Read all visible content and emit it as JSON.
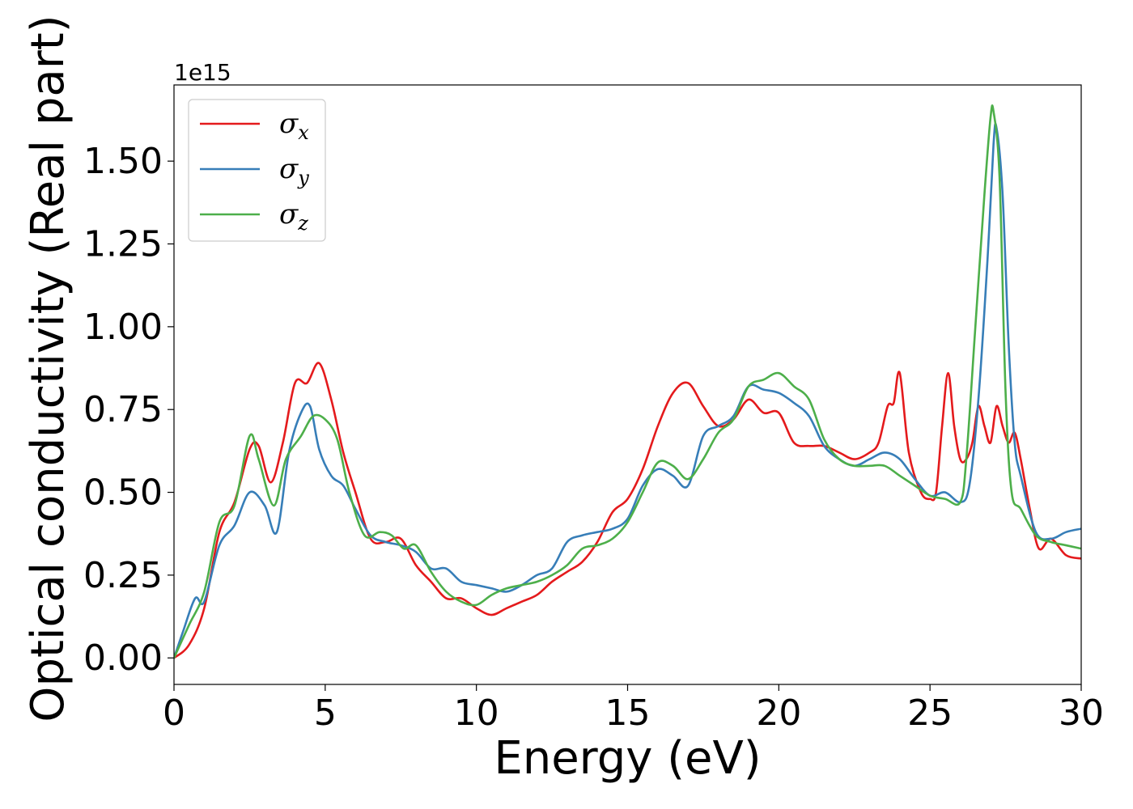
{
  "chart_data": {
    "type": "line",
    "xlabel": "Energy (eV)",
    "ylabel": "Optical conductivity (Real part)",
    "y_offset_label": "1e15",
    "xlim": [
      0,
      30
    ],
    "ylim": [
      -0.08,
      1.73
    ],
    "xticks": [
      0,
      5,
      10,
      15,
      20,
      25,
      30
    ],
    "xtick_labels": [
      "0",
      "5",
      "10",
      "15",
      "20",
      "25",
      "30"
    ],
    "yticks": [
      0.0,
      0.25,
      0.5,
      0.75,
      1.0,
      1.25,
      1.5
    ],
    "ytick_labels": [
      "0.00",
      "0.25",
      "0.50",
      "0.75",
      "1.00",
      "1.25",
      "1.50"
    ],
    "grid": false,
    "legend_position": "upper-left",
    "series": [
      {
        "name": "σx",
        "symbol": "σ",
        "subscript": "x",
        "color": "#e41a1c",
        "x": [
          0,
          0.5,
          1,
          1.5,
          2,
          2.5,
          2.8,
          3.2,
          3.6,
          4,
          4.4,
          4.8,
          5.2,
          5.6,
          6,
          6.5,
          7,
          7.5,
          8,
          8.5,
          9,
          9.5,
          10,
          10.5,
          11,
          11.5,
          12,
          12.5,
          13,
          13.5,
          14,
          14.5,
          15,
          15.5,
          16,
          16.5,
          17,
          17.5,
          18,
          18.5,
          19,
          19.5,
          20,
          20.5,
          21,
          21.5,
          22,
          22.5,
          23,
          23.3,
          23.6,
          23.8,
          24,
          24.3,
          24.7,
          25,
          25.2,
          25.4,
          25.6,
          25.8,
          26,
          26.2,
          26.4,
          26.6,
          26.8,
          27,
          27.2,
          27.4,
          27.6,
          27.8,
          28,
          28.3,
          28.6,
          29,
          29.5,
          30
        ],
        "values": [
          0,
          0.04,
          0.15,
          0.38,
          0.47,
          0.63,
          0.64,
          0.53,
          0.65,
          0.83,
          0.83,
          0.89,
          0.78,
          0.62,
          0.5,
          0.36,
          0.35,
          0.36,
          0.28,
          0.23,
          0.18,
          0.18,
          0.15,
          0.13,
          0.15,
          0.17,
          0.19,
          0.23,
          0.26,
          0.29,
          0.35,
          0.44,
          0.48,
          0.57,
          0.7,
          0.8,
          0.83,
          0.76,
          0.7,
          0.72,
          0.78,
          0.74,
          0.74,
          0.65,
          0.64,
          0.64,
          0.62,
          0.6,
          0.62,
          0.65,
          0.76,
          0.77,
          0.86,
          0.62,
          0.5,
          0.48,
          0.5,
          0.7,
          0.86,
          0.7,
          0.6,
          0.6,
          0.65,
          0.76,
          0.7,
          0.65,
          0.76,
          0.7,
          0.65,
          0.68,
          0.6,
          0.45,
          0.33,
          0.36,
          0.31,
          0.3
        ]
      },
      {
        "name": "σy",
        "symbol": "σ",
        "subscript": "y",
        "color": "#377eb8",
        "x": [
          0,
          0.3,
          0.7,
          1,
          1.5,
          2,
          2.5,
          3,
          3.4,
          3.8,
          4.2,
          4.5,
          4.8,
          5.2,
          5.6,
          6,
          6.5,
          7,
          7.5,
          8,
          8.5,
          9,
          9.5,
          10,
          10.5,
          11,
          11.5,
          12,
          12.5,
          13,
          13.5,
          14,
          14.5,
          15,
          15.5,
          16,
          16.5,
          17,
          17.5,
          18,
          18.5,
          19,
          19.5,
          20,
          20.5,
          21,
          21.5,
          22,
          22.5,
          23,
          23.5,
          24,
          24.5,
          25,
          25.5,
          26,
          26.3,
          26.6,
          26.9,
          27.1,
          27.2,
          27.4,
          27.6,
          27.8,
          28,
          28.5,
          29,
          29.5,
          30
        ],
        "values": [
          0,
          0.08,
          0.18,
          0.17,
          0.34,
          0.4,
          0.5,
          0.46,
          0.38,
          0.62,
          0.74,
          0.76,
          0.63,
          0.55,
          0.52,
          0.45,
          0.37,
          0.35,
          0.34,
          0.32,
          0.27,
          0.27,
          0.23,
          0.22,
          0.21,
          0.2,
          0.22,
          0.25,
          0.27,
          0.35,
          0.37,
          0.38,
          0.39,
          0.42,
          0.52,
          0.57,
          0.55,
          0.52,
          0.67,
          0.7,
          0.73,
          0.82,
          0.81,
          0.8,
          0.77,
          0.73,
          0.64,
          0.6,
          0.58,
          0.6,
          0.62,
          0.6,
          0.54,
          0.49,
          0.5,
          0.47,
          0.52,
          0.78,
          1.2,
          1.55,
          1.6,
          1.4,
          0.95,
          0.65,
          0.55,
          0.38,
          0.36,
          0.38,
          0.39
        ]
      },
      {
        "name": "σz",
        "symbol": "σ",
        "subscript": "z",
        "color": "#4daf4a",
        "x": [
          0,
          0.5,
          1,
          1.5,
          2,
          2.5,
          2.8,
          3.3,
          3.7,
          4.2,
          4.6,
          5,
          5.4,
          5.8,
          6.3,
          6.8,
          7.2,
          7.6,
          8,
          8.5,
          9,
          9.5,
          10,
          10.5,
          11,
          11.5,
          12,
          12.5,
          13,
          13.5,
          14,
          14.5,
          15,
          15.5,
          16,
          16.5,
          17,
          17.5,
          18,
          18.5,
          19,
          19.5,
          20,
          20.5,
          21,
          21.5,
          22,
          22.5,
          23,
          23.5,
          24,
          24.5,
          25,
          25.5,
          26,
          26.2,
          26.5,
          26.8,
          27,
          27.1,
          27.3,
          27.5,
          27.7,
          28,
          28.5,
          29,
          29.5,
          30
        ],
        "values": [
          0,
          0.1,
          0.2,
          0.41,
          0.46,
          0.67,
          0.6,
          0.46,
          0.6,
          0.67,
          0.73,
          0.72,
          0.66,
          0.5,
          0.37,
          0.38,
          0.37,
          0.33,
          0.34,
          0.26,
          0.2,
          0.17,
          0.16,
          0.19,
          0.21,
          0.22,
          0.23,
          0.25,
          0.28,
          0.33,
          0.34,
          0.36,
          0.41,
          0.5,
          0.59,
          0.58,
          0.54,
          0.6,
          0.68,
          0.72,
          0.82,
          0.84,
          0.86,
          0.82,
          0.78,
          0.66,
          0.6,
          0.58,
          0.58,
          0.58,
          0.55,
          0.52,
          0.49,
          0.48,
          0.47,
          0.6,
          1.0,
          1.4,
          1.63,
          1.65,
          1.45,
          0.8,
          0.5,
          0.45,
          0.37,
          0.35,
          0.34,
          0.33
        ]
      }
    ]
  }
}
